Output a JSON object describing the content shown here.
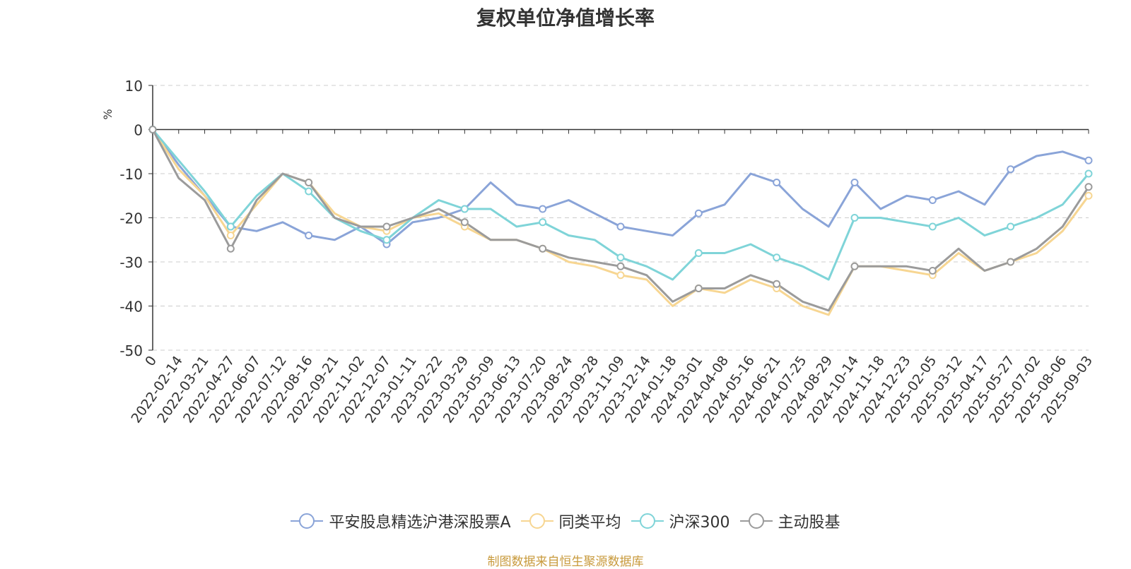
{
  "chart_data": {
    "type": "line",
    "title": "复权单位净值增长率",
    "ylabel": "%",
    "ylim": [
      -50,
      10
    ],
    "y_ticks": [
      10,
      0,
      -10,
      -20,
      -30,
      -40,
      -50
    ],
    "grid": true,
    "legend_position": "bottom",
    "x_labels": [
      "0",
      "2022-02-14",
      "2022-03-21",
      "2022-04-27",
      "2022-06-07",
      "2022-07-12",
      "2022-08-16",
      "2022-09-21",
      "2022-11-02",
      "2022-12-07",
      "2023-01-11",
      "2023-02-22",
      "2023-03-29",
      "2023-05-09",
      "2023-06-13",
      "2023-07-20",
      "2023-08-24",
      "2023-09-28",
      "2023-11-09",
      "2023-12-14",
      "2024-01-18",
      "2024-03-01",
      "2024-04-08",
      "2024-05-16",
      "2024-06-21",
      "2024-07-25",
      "2024-08-29",
      "2024-10-14",
      "2024-11-18",
      "2024-12-23",
      "2025-02-05",
      "2025-03-12",
      "2025-04-17",
      "2025-05-27",
      "2025-07-02",
      "2025-08-06",
      "2025-09-03"
    ],
    "series": [
      {
        "name": "平安股息精选沪港深股票A",
        "color": "#8aa4d8",
        "values": [
          0,
          -8,
          -15,
          -22,
          -23,
          -21,
          -24,
          -25,
          -22,
          -26,
          -21,
          -20,
          -18,
          -12,
          -17,
          -18,
          -16,
          -19,
          -22,
          -23,
          -24,
          -19,
          -17,
          -10,
          -12,
          -18,
          -22,
          -12,
          -18,
          -15,
          -16,
          -14,
          -17,
          -9,
          -6,
          -5,
          -7
        ]
      },
      {
        "name": "同类平均",
        "color": "#f7d692",
        "values": [
          0,
          -9,
          -15,
          -24,
          -17,
          -10,
          -12,
          -19,
          -22,
          -23,
          -20,
          -19,
          -22,
          -25,
          -25,
          -27,
          -30,
          -31,
          -33,
          -34,
          -40,
          -36,
          -37,
          -34,
          -36,
          -40,
          -42,
          -31,
          -31,
          -32,
          -33,
          -28,
          -32,
          -30,
          -28,
          -23,
          -15
        ]
      },
      {
        "name": "沪深300",
        "color": "#7fd4d8",
        "values": [
          0,
          -7,
          -14,
          -22,
          -15,
          -10,
          -14,
          -20,
          -23,
          -25,
          -20,
          -16,
          -18,
          -18,
          -22,
          -21,
          -24,
          -25,
          -29,
          -31,
          -34,
          -28,
          -28,
          -26,
          -29,
          -31,
          -34,
          -20,
          -20,
          -21,
          -22,
          -20,
          -24,
          -22,
          -20,
          -17,
          -10
        ]
      },
      {
        "name": "主动股基",
        "color": "#9b9b9b",
        "values": [
          0,
          -11,
          -16,
          -27,
          -16,
          -10,
          -12,
          -20,
          -22,
          -22,
          -20,
          -18,
          -21,
          -25,
          -25,
          -27,
          -29,
          -30,
          -31,
          -33,
          -39,
          -36,
          -36,
          -33,
          -35,
          -39,
          -41,
          -31,
          -31,
          -31,
          -32,
          -27,
          -32,
          -30,
          -27,
          -22,
          -13
        ]
      }
    ]
  },
  "source_note": "制图数据来自恒生聚源数据库"
}
